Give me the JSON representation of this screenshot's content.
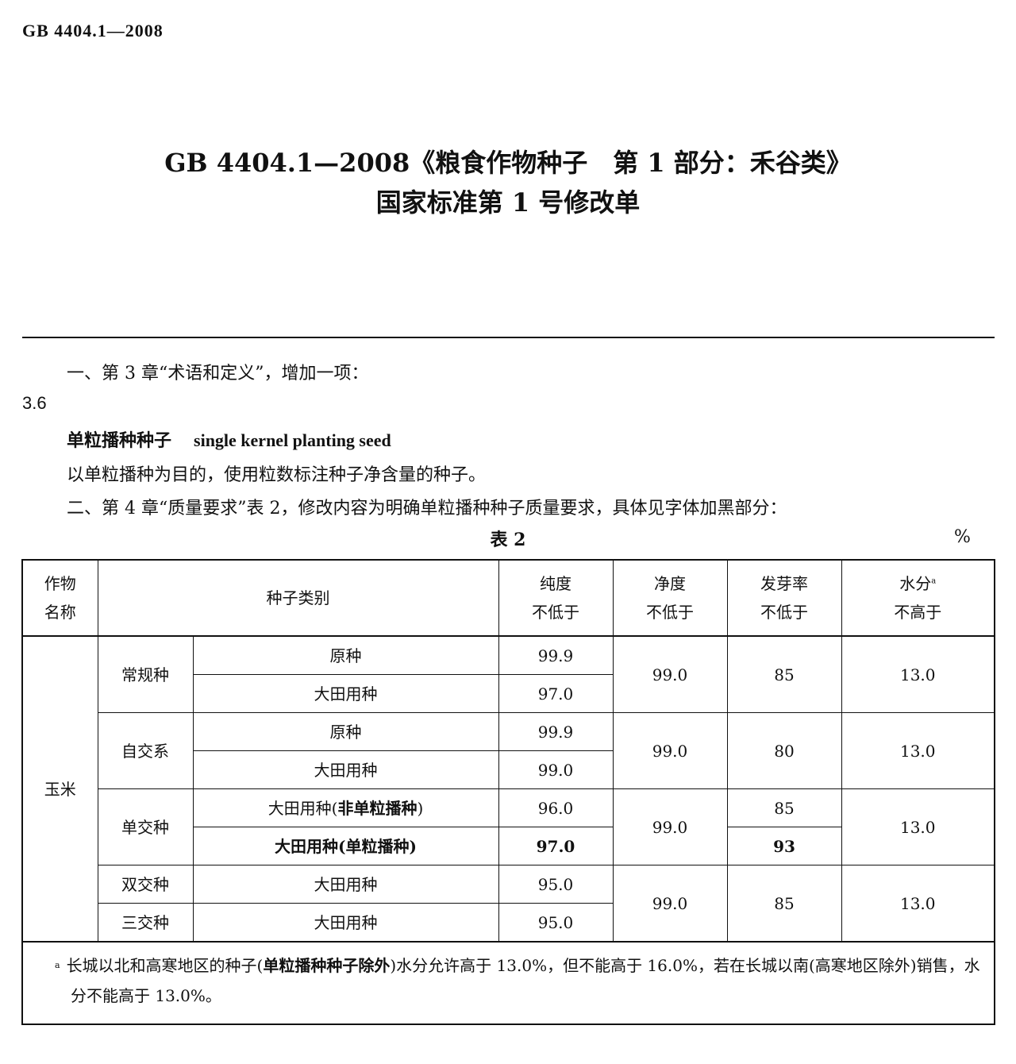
{
  "header": {
    "doc_id": "GB  4404.1—2008"
  },
  "title": {
    "line1": "GB 4404.1—2008《粮食作物种子　第 1 部分：禾谷类》",
    "line2": "国家标准第 1 号修改单"
  },
  "body": {
    "p1": "一、第 3 章“术语和定义”，增加一项：",
    "clause_number": "3.6",
    "term_zh": "单粒播种种子",
    "term_en": "single kernel planting seed",
    "definition": "以单粒播种为目的，使用粒数标注种子净含量的种子。",
    "p4": "二、第 4 章“质量要求”表 2，修改内容为明确单粒播种种子质量要求，具体见字体加黑部分："
  },
  "table": {
    "caption": "表 2",
    "unit": "%",
    "headers": {
      "crop": "作物\n名称",
      "category": "种子类别",
      "purity": "纯度\n不低于",
      "cleanliness": "净度\n不低于",
      "germination": "发芽率\n不低于",
      "moisture": "水分",
      "moisture_note": "a",
      "moisture_sub": "不高于"
    },
    "crop": "玉米",
    "groups": [
      {
        "type": "常规种",
        "rows": [
          {
            "class": "原种",
            "purity": "99.9"
          },
          {
            "class": "大田用种",
            "purity": "97.0"
          }
        ],
        "cleanliness": "99.0",
        "germination": "85",
        "moisture": "13.0"
      },
      {
        "type": "自交系",
        "rows": [
          {
            "class": "原种",
            "purity": "99.9"
          },
          {
            "class": "大田用种",
            "purity": "99.0"
          }
        ],
        "cleanliness": "99.0",
        "germination": "80",
        "moisture": "13.0"
      },
      {
        "type": "单交种",
        "rows": [
          {
            "class_a": "大田用种(",
            "class_b": "非单粒播种",
            "class_c": ")",
            "purity": "96.0",
            "germination": "85"
          },
          {
            "class": "大田用种(单粒播种)",
            "purity": "97.0",
            "germination": "93"
          }
        ],
        "cleanliness": "99.0",
        "moisture": "13.0"
      },
      {
        "types": [
          "双交种",
          "三交种"
        ],
        "rows": [
          {
            "class": "大田用种",
            "purity": "95.0"
          },
          {
            "class": "大田用种",
            "purity": "95.0"
          }
        ],
        "cleanliness": "99.0",
        "germination": "85",
        "moisture": "13.0"
      }
    ],
    "footnote": {
      "mark": "a",
      "part1": "长城以北和高寒地区的种子(",
      "bold": "单粒播种种子除外",
      "part2": ")水分允许高于 13.0%，但不能高于 16.0%，若在长城以南(高寒地区除外)销售，水分不能高于 13.0%。"
    }
  }
}
